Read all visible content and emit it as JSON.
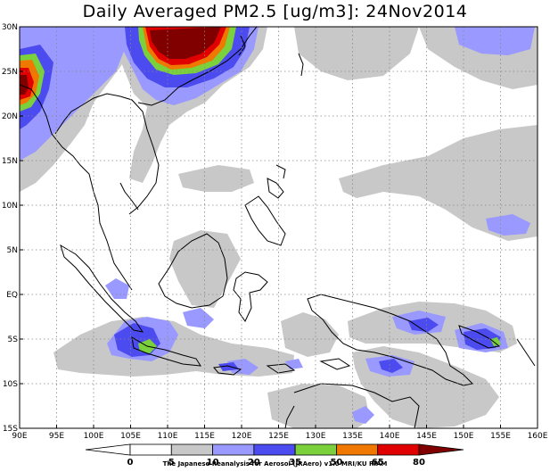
{
  "title": "Daily Averaged PM2.5 [ug/m3]: 24Nov2014",
  "map": {
    "lon_range": [
      90,
      160
    ],
    "lat_range": [
      -15,
      30
    ],
    "lon_ticks": [
      "90E",
      "95E",
      "100E",
      "105E",
      "110E",
      "115E",
      "120E",
      "125E",
      "130E",
      "135E",
      "140E",
      "145E",
      "150E",
      "155E",
      "160E"
    ],
    "lat_ticks": [
      "30N",
      "25N",
      "20N",
      "15N",
      "10N",
      "5N",
      "EQ",
      "5S",
      "10S",
      "15S"
    ],
    "grid": "dotted"
  },
  "colorbar": {
    "levels": [
      "0",
      "5",
      "10",
      "20",
      "35",
      "50",
      "65",
      "80"
    ],
    "colors": [
      "#ffffff",
      "#ffffff",
      "#c8c8c8",
      "#9999ff",
      "#4b4bf0",
      "#7ad13c",
      "#f07800",
      "#e00000",
      "#800000"
    ]
  },
  "credit": "The Japanese Reanalysis for Aerosol (JRAero) v1.0 MRI/KU RIAM"
}
